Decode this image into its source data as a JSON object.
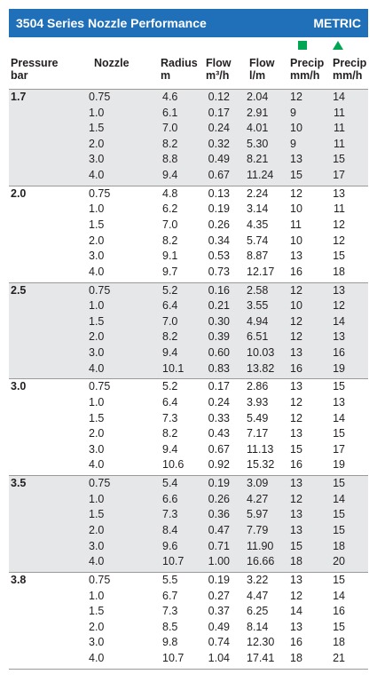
{
  "header": {
    "title": "3504 Series Nozzle Performance",
    "unit": "METRIC"
  },
  "columns": [
    [
      "Pressure",
      "bar"
    ],
    [
      "Nozzle"
    ],
    [
      "Radius",
      "m"
    ],
    [
      "Flow",
      "m³/h"
    ],
    [
      "Flow",
      "l/m"
    ],
    [
      "Precip",
      "mm/h"
    ],
    [
      "Precip",
      "mm/h"
    ]
  ],
  "groups": [
    {
      "pressure": "1.7",
      "rows": [
        [
          "0.75",
          "4.6",
          "0.12",
          "2.04",
          "12",
          "14"
        ],
        [
          "1.0",
          "6.1",
          "0.17",
          "2.91",
          "9",
          "11"
        ],
        [
          "1.5",
          "7.0",
          "0.24",
          "4.01",
          "10",
          "11"
        ],
        [
          "2.0",
          "8.2",
          "0.32",
          "5.30",
          "9",
          "11"
        ],
        [
          "3.0",
          "8.8",
          "0.49",
          "8.21",
          "13",
          "15"
        ],
        [
          "4.0",
          "9.4",
          "0.67",
          "11.24",
          "15",
          "17"
        ]
      ]
    },
    {
      "pressure": "2.0",
      "rows": [
        [
          "0.75",
          "4.8",
          "0.13",
          "2.24",
          "12",
          "13"
        ],
        [
          "1.0",
          "6.2",
          "0.19",
          "3.14",
          "10",
          "11"
        ],
        [
          "1.5",
          "7.0",
          "0.26",
          "4.35",
          "11",
          "12"
        ],
        [
          "2.0",
          "8.2",
          "0.34",
          "5.74",
          "10",
          "12"
        ],
        [
          "3.0",
          "9.1",
          "0.53",
          "8.87",
          "13",
          "15"
        ],
        [
          "4.0",
          "9.7",
          "0.73",
          "12.17",
          "16",
          "18"
        ]
      ]
    },
    {
      "pressure": "2.5",
      "rows": [
        [
          "0.75",
          "5.2",
          "0.16",
          "2.58",
          "12",
          "13"
        ],
        [
          "1.0",
          "6.4",
          "0.21",
          "3.55",
          "10",
          "12"
        ],
        [
          "1.5",
          "7.0",
          "0.30",
          "4.94",
          "12",
          "14"
        ],
        [
          "2.0",
          "8.2",
          "0.39",
          "6.51",
          "12",
          "13"
        ],
        [
          "3.0",
          "9.4",
          "0.60",
          "10.03",
          "13",
          "16"
        ],
        [
          "4.0",
          "10.1",
          "0.83",
          "13.82",
          "16",
          "19"
        ]
      ]
    },
    {
      "pressure": "3.0",
      "rows": [
        [
          "0.75",
          "5.2",
          "0.17",
          "2.86",
          "13",
          "15"
        ],
        [
          "1.0",
          "6.4",
          "0.24",
          "3.93",
          "12",
          "13"
        ],
        [
          "1.5",
          "7.3",
          "0.33",
          "5.49",
          "12",
          "14"
        ],
        [
          "2.0",
          "8.2",
          "0.43",
          "7.17",
          "13",
          "15"
        ],
        [
          "3.0",
          "9.4",
          "0.67",
          "11.13",
          "15",
          "17"
        ],
        [
          "4.0",
          "10.6",
          "0.92",
          "15.32",
          "16",
          "19"
        ]
      ]
    },
    {
      "pressure": "3.5",
      "rows": [
        [
          "0.75",
          "5.4",
          "0.19",
          "3.09",
          "13",
          "15"
        ],
        [
          "1.0",
          "6.6",
          "0.26",
          "4.27",
          "12",
          "14"
        ],
        [
          "1.5",
          "7.3",
          "0.36",
          "5.97",
          "13",
          "15"
        ],
        [
          "2.0",
          "8.4",
          "0.47",
          "7.79",
          "13",
          "15"
        ],
        [
          "3.0",
          "9.6",
          "0.71",
          "11.90",
          "15",
          "18"
        ],
        [
          "4.0",
          "10.7",
          "1.00",
          "16.66",
          "18",
          "20"
        ]
      ]
    },
    {
      "pressure": "3.8",
      "rows": [
        [
          "0.75",
          "5.5",
          "0.19",
          "3.22",
          "13",
          "15"
        ],
        [
          "1.0",
          "6.7",
          "0.27",
          "4.47",
          "12",
          "14"
        ],
        [
          "1.5",
          "7.3",
          "0.37",
          "6.25",
          "14",
          "16"
        ],
        [
          "2.0",
          "8.5",
          "0.49",
          "8.14",
          "13",
          "15"
        ],
        [
          "3.0",
          "9.8",
          "0.74",
          "12.30",
          "16",
          "18"
        ],
        [
          "4.0",
          "10.7",
          "1.04",
          "17.41",
          "18",
          "21"
        ]
      ]
    }
  ]
}
